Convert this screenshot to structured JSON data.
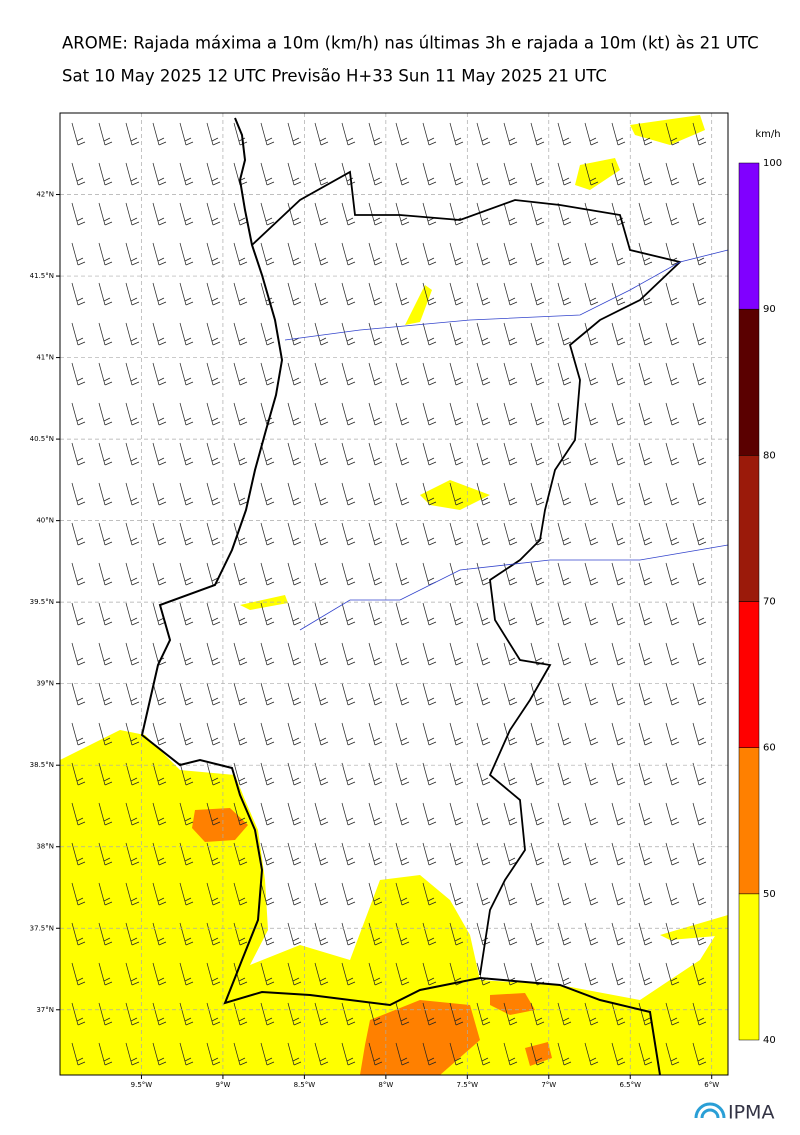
{
  "title": "AROME: Rajada máxima a 10m (km/h) nas últimas 3h e rajada a 10m (kt) às 21 UTC",
  "subtitle": "Sat 10 May 2025 12 UTC Previsão H+33 Sun 11 May 2025 21 UTC",
  "xlim": [
    -10,
    -5.9
  ],
  "ylim": [
    36.6,
    42.5
  ],
  "xticks": [
    {
      "value": -9.5,
      "label": "9.5°W"
    },
    {
      "value": -9,
      "label": "9°W"
    },
    {
      "value": -8.5,
      "label": "8.5°W"
    },
    {
      "value": -8,
      "label": "8°W"
    },
    {
      "value": -7.5,
      "label": "7.5°W"
    },
    {
      "value": -7,
      "label": "7°W"
    },
    {
      "value": -6.5,
      "label": "6.5°W"
    },
    {
      "value": -6,
      "label": "6°W"
    }
  ],
  "yticks": [
    {
      "value": 37,
      "label": "37°N"
    },
    {
      "value": 37.5,
      "label": "37.5°N"
    },
    {
      "value": 38,
      "label": "38°N"
    },
    {
      "value": 38.5,
      "label": "38.5°N"
    },
    {
      "value": 39,
      "label": "39°N"
    },
    {
      "value": 39.5,
      "label": "39.5°N"
    },
    {
      "value": 40,
      "label": "40°N"
    },
    {
      "value": 40.5,
      "label": "40.5°N"
    },
    {
      "value": 41,
      "label": "41°N"
    },
    {
      "value": 41.5,
      "label": "41.5°N"
    },
    {
      "value": 42,
      "label": "42°N"
    }
  ],
  "colorbar": {
    "unit": "km/h",
    "ticks": [
      40,
      50,
      60,
      70,
      80,
      90,
      100
    ],
    "colors": [
      "#ffff00",
      "#ff8000",
      "#ff0000",
      "#9b1a0a",
      "#5a0000",
      "#8000ff"
    ]
  },
  "logo": "IPMA"
}
